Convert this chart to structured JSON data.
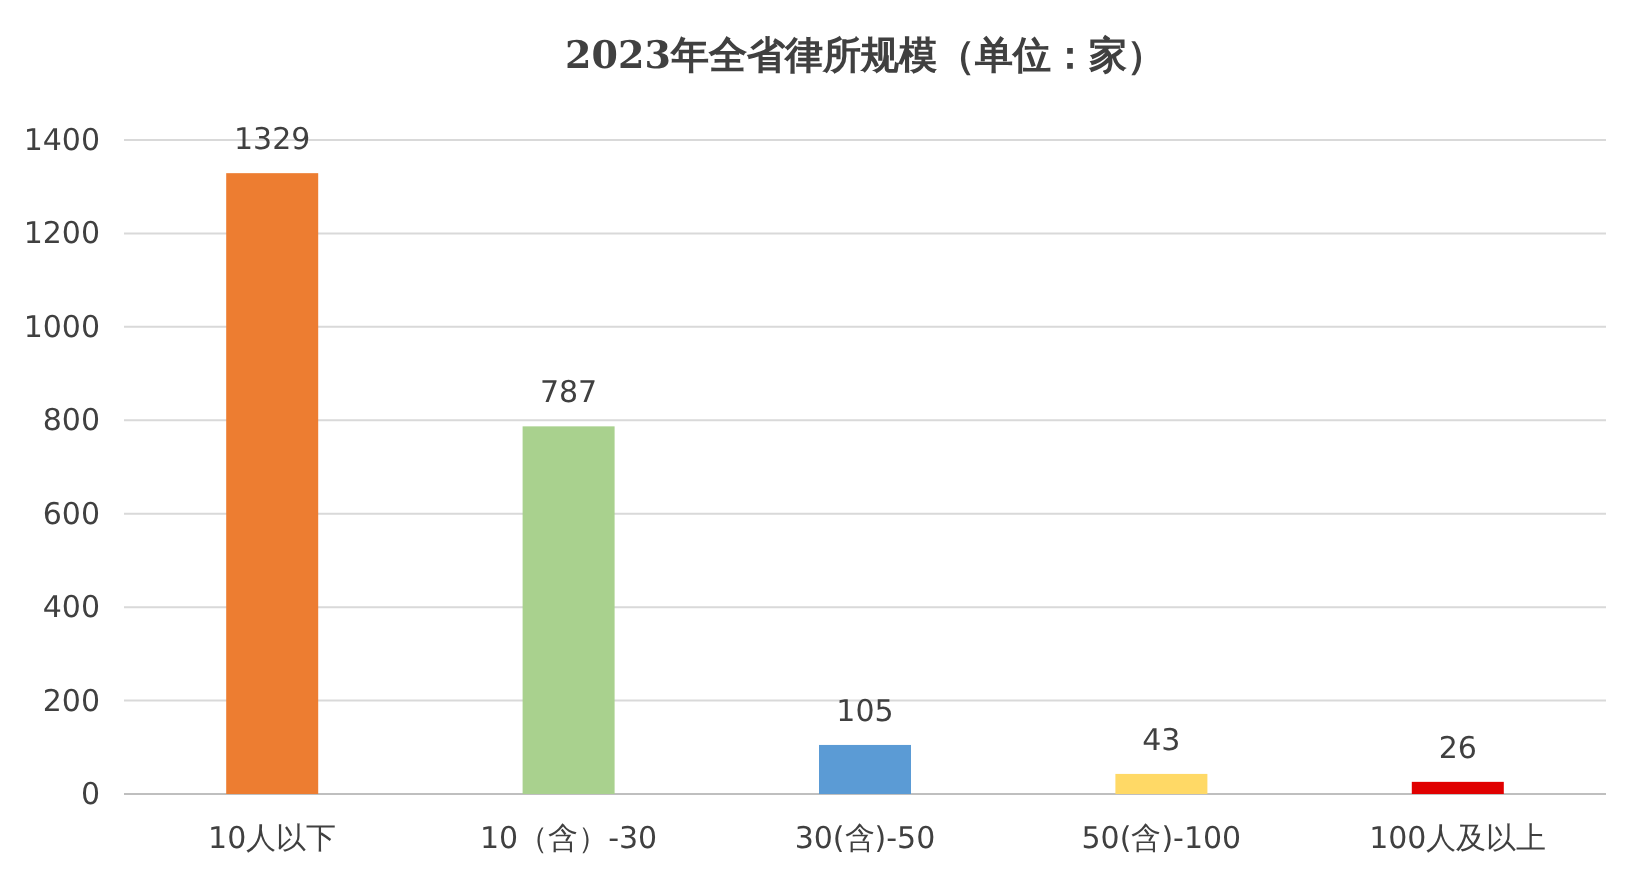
{
  "chart_data": {
    "type": "bar",
    "title": "2023年全省律所规模（单位：家）",
    "categories": [
      "10人以下",
      "10（含）-30",
      "30(含)-50",
      "50(含)-100",
      "100人及以上"
    ],
    "values": [
      1329,
      787,
      105,
      43,
      26
    ],
    "colors": [
      "#ed7d31",
      "#a9d18e",
      "#5b9bd5",
      "#ffd966",
      "#e00000"
    ],
    "ylim": [
      0,
      1400
    ],
    "yticks": [
      0,
      200,
      400,
      600,
      800,
      1000,
      1200,
      1400
    ],
    "grid": "y",
    "data_labels": true
  }
}
